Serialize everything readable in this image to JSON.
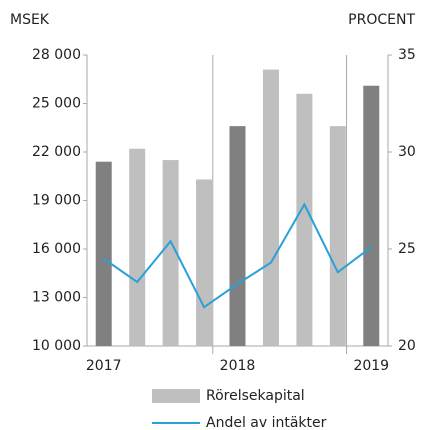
{
  "chart_data": {
    "type": "bar_line",
    "y_label": "MSEK",
    "y2_label": "PROCENT",
    "categories": [
      "2017",
      null,
      null,
      null,
      "2018",
      null,
      null,
      null,
      "2019"
    ],
    "series": [
      {
        "name": "Rörelsekapital",
        "type": "bar",
        "colors": [
          "#808080",
          "#bfbfbf",
          "#bfbfbf",
          "#bfbfbf",
          "#808080",
          "#bfbfbf",
          "#bfbfbf",
          "#bfbfbf",
          "#808080"
        ],
        "color": "#bfbfbf",
        "values": [
          21400,
          22200,
          21500,
          20300,
          23600,
          27100,
          25600,
          23600,
          26100
        ]
      },
      {
        "name": "Andel av intäkter",
        "type": "line",
        "axis": "y2",
        "color": "#2aa0d8",
        "values": [
          24.5,
          23.3,
          25.4,
          22.0,
          23.2,
          24.3,
          27.3,
          23.8,
          25.1
        ]
      }
    ],
    "ylim": [
      10000,
      28000
    ],
    "yticks": [
      {
        "value": 10000,
        "label": "10 000"
      },
      {
        "value": 13000,
        "label": "13 000"
      },
      {
        "value": 16000,
        "label": "16 000"
      },
      {
        "value": 19000,
        "label": "19 000"
      },
      {
        "value": 22000,
        "label": "22 000"
      },
      {
        "value": 25000,
        "label": "25 000"
      },
      {
        "value": 28000,
        "label": "28 000"
      }
    ],
    "y2lim": [
      20,
      35
    ],
    "y2ticks": [
      20,
      25,
      30,
      35
    ]
  }
}
